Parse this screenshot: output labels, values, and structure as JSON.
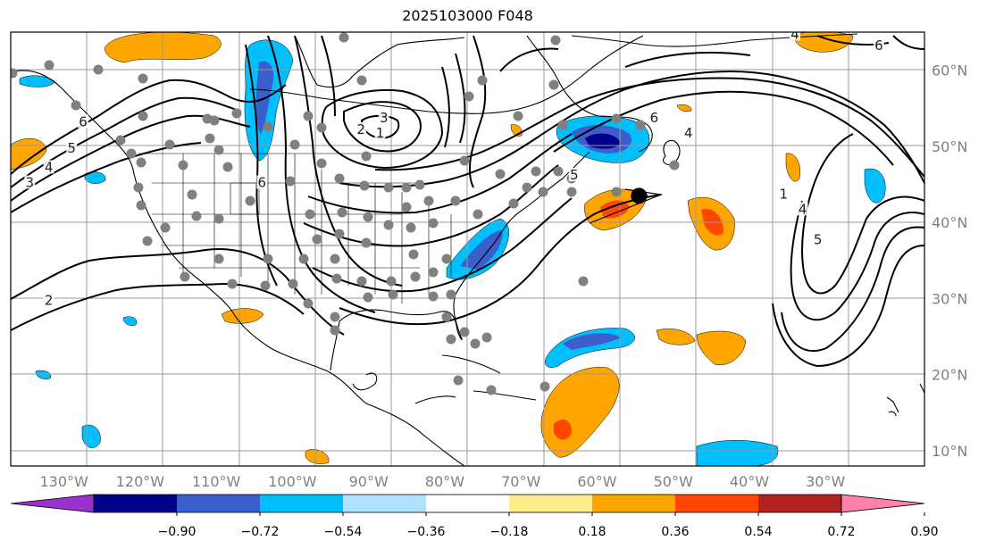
{
  "title": "2025103000 F048",
  "map": {
    "lon_range": [
      -137,
      -17
    ],
    "lat_range": [
      8,
      65
    ],
    "lat_ticks": [
      {
        "value": 60,
        "label": "60°N"
      },
      {
        "value": 50,
        "label": "50°N"
      },
      {
        "value": 40,
        "label": "40°N"
      },
      {
        "value": 30,
        "label": "30°N"
      },
      {
        "value": 20,
        "label": "20°N"
      },
      {
        "value": 10,
        "label": "10°N"
      }
    ],
    "lon_ticks": [
      {
        "value": -130,
        "label": "130°W"
      },
      {
        "value": -120,
        "label": "120°W"
      },
      {
        "value": -110,
        "label": "110°W"
      },
      {
        "value": -100,
        "label": "100°W"
      },
      {
        "value": -90,
        "label": "90°W"
      },
      {
        "value": -80,
        "label": "80°W"
      },
      {
        "value": -70,
        "label": "70°W"
      },
      {
        "value": -60,
        "label": "60°W"
      },
      {
        "value": -50,
        "label": "50°W"
      },
      {
        "value": -40,
        "label": "40°W"
      },
      {
        "value": -30,
        "label": "30°W"
      }
    ],
    "marker": {
      "lon": -54.5,
      "lat": 43.5
    }
  },
  "contour_labels": [
    {
      "text": "3",
      "lon": -88,
      "lat": 53.5
    },
    {
      "text": "1",
      "lon": -88.5,
      "lat": 51.5
    },
    {
      "text": "2",
      "lon": -91,
      "lat": 52
    },
    {
      "text": "6",
      "lon": -127.5,
      "lat": 53
    },
    {
      "text": "5",
      "lon": -129,
      "lat": 49.5
    },
    {
      "text": "4",
      "lon": -132,
      "lat": 47
    },
    {
      "text": "3",
      "lon": -134.5,
      "lat": 45
    },
    {
      "text": "2",
      "lon": -132,
      "lat": 29.5
    },
    {
      "text": "6",
      "lon": -52.5,
      "lat": 53.5
    },
    {
      "text": "4",
      "lon": -48,
      "lat": 51.5
    },
    {
      "text": "1",
      "lon": -35.5,
      "lat": 43.5
    },
    {
      "text": "4",
      "lon": -33,
      "lat": 41.5
    },
    {
      "text": "5",
      "lon": -31,
      "lat": 37.5
    },
    {
      "text": "5",
      "lon": -63,
      "lat": 46
    },
    {
      "text": "6",
      "lon": -104,
      "lat": 45
    },
    {
      "text": "4",
      "lon": -34,
      "lat": 64.5
    },
    {
      "text": "6",
      "lon": -23,
      "lat": 63
    }
  ],
  "colorbar": {
    "colors": [
      "#9932cc",
      "#00008b",
      "#3a5fcd",
      "#00bfff",
      "#b0e2ff",
      "#ffffff",
      "#ffec8b",
      "#ffa500",
      "#ff4500",
      "#b22222",
      "#ff82ab"
    ],
    "tick_labels": [
      "−0.90",
      "−0.72",
      "−0.54",
      "−0.36",
      "−0.18",
      "0.18",
      "0.36",
      "0.54",
      "0.72",
      "0.90"
    ]
  }
}
